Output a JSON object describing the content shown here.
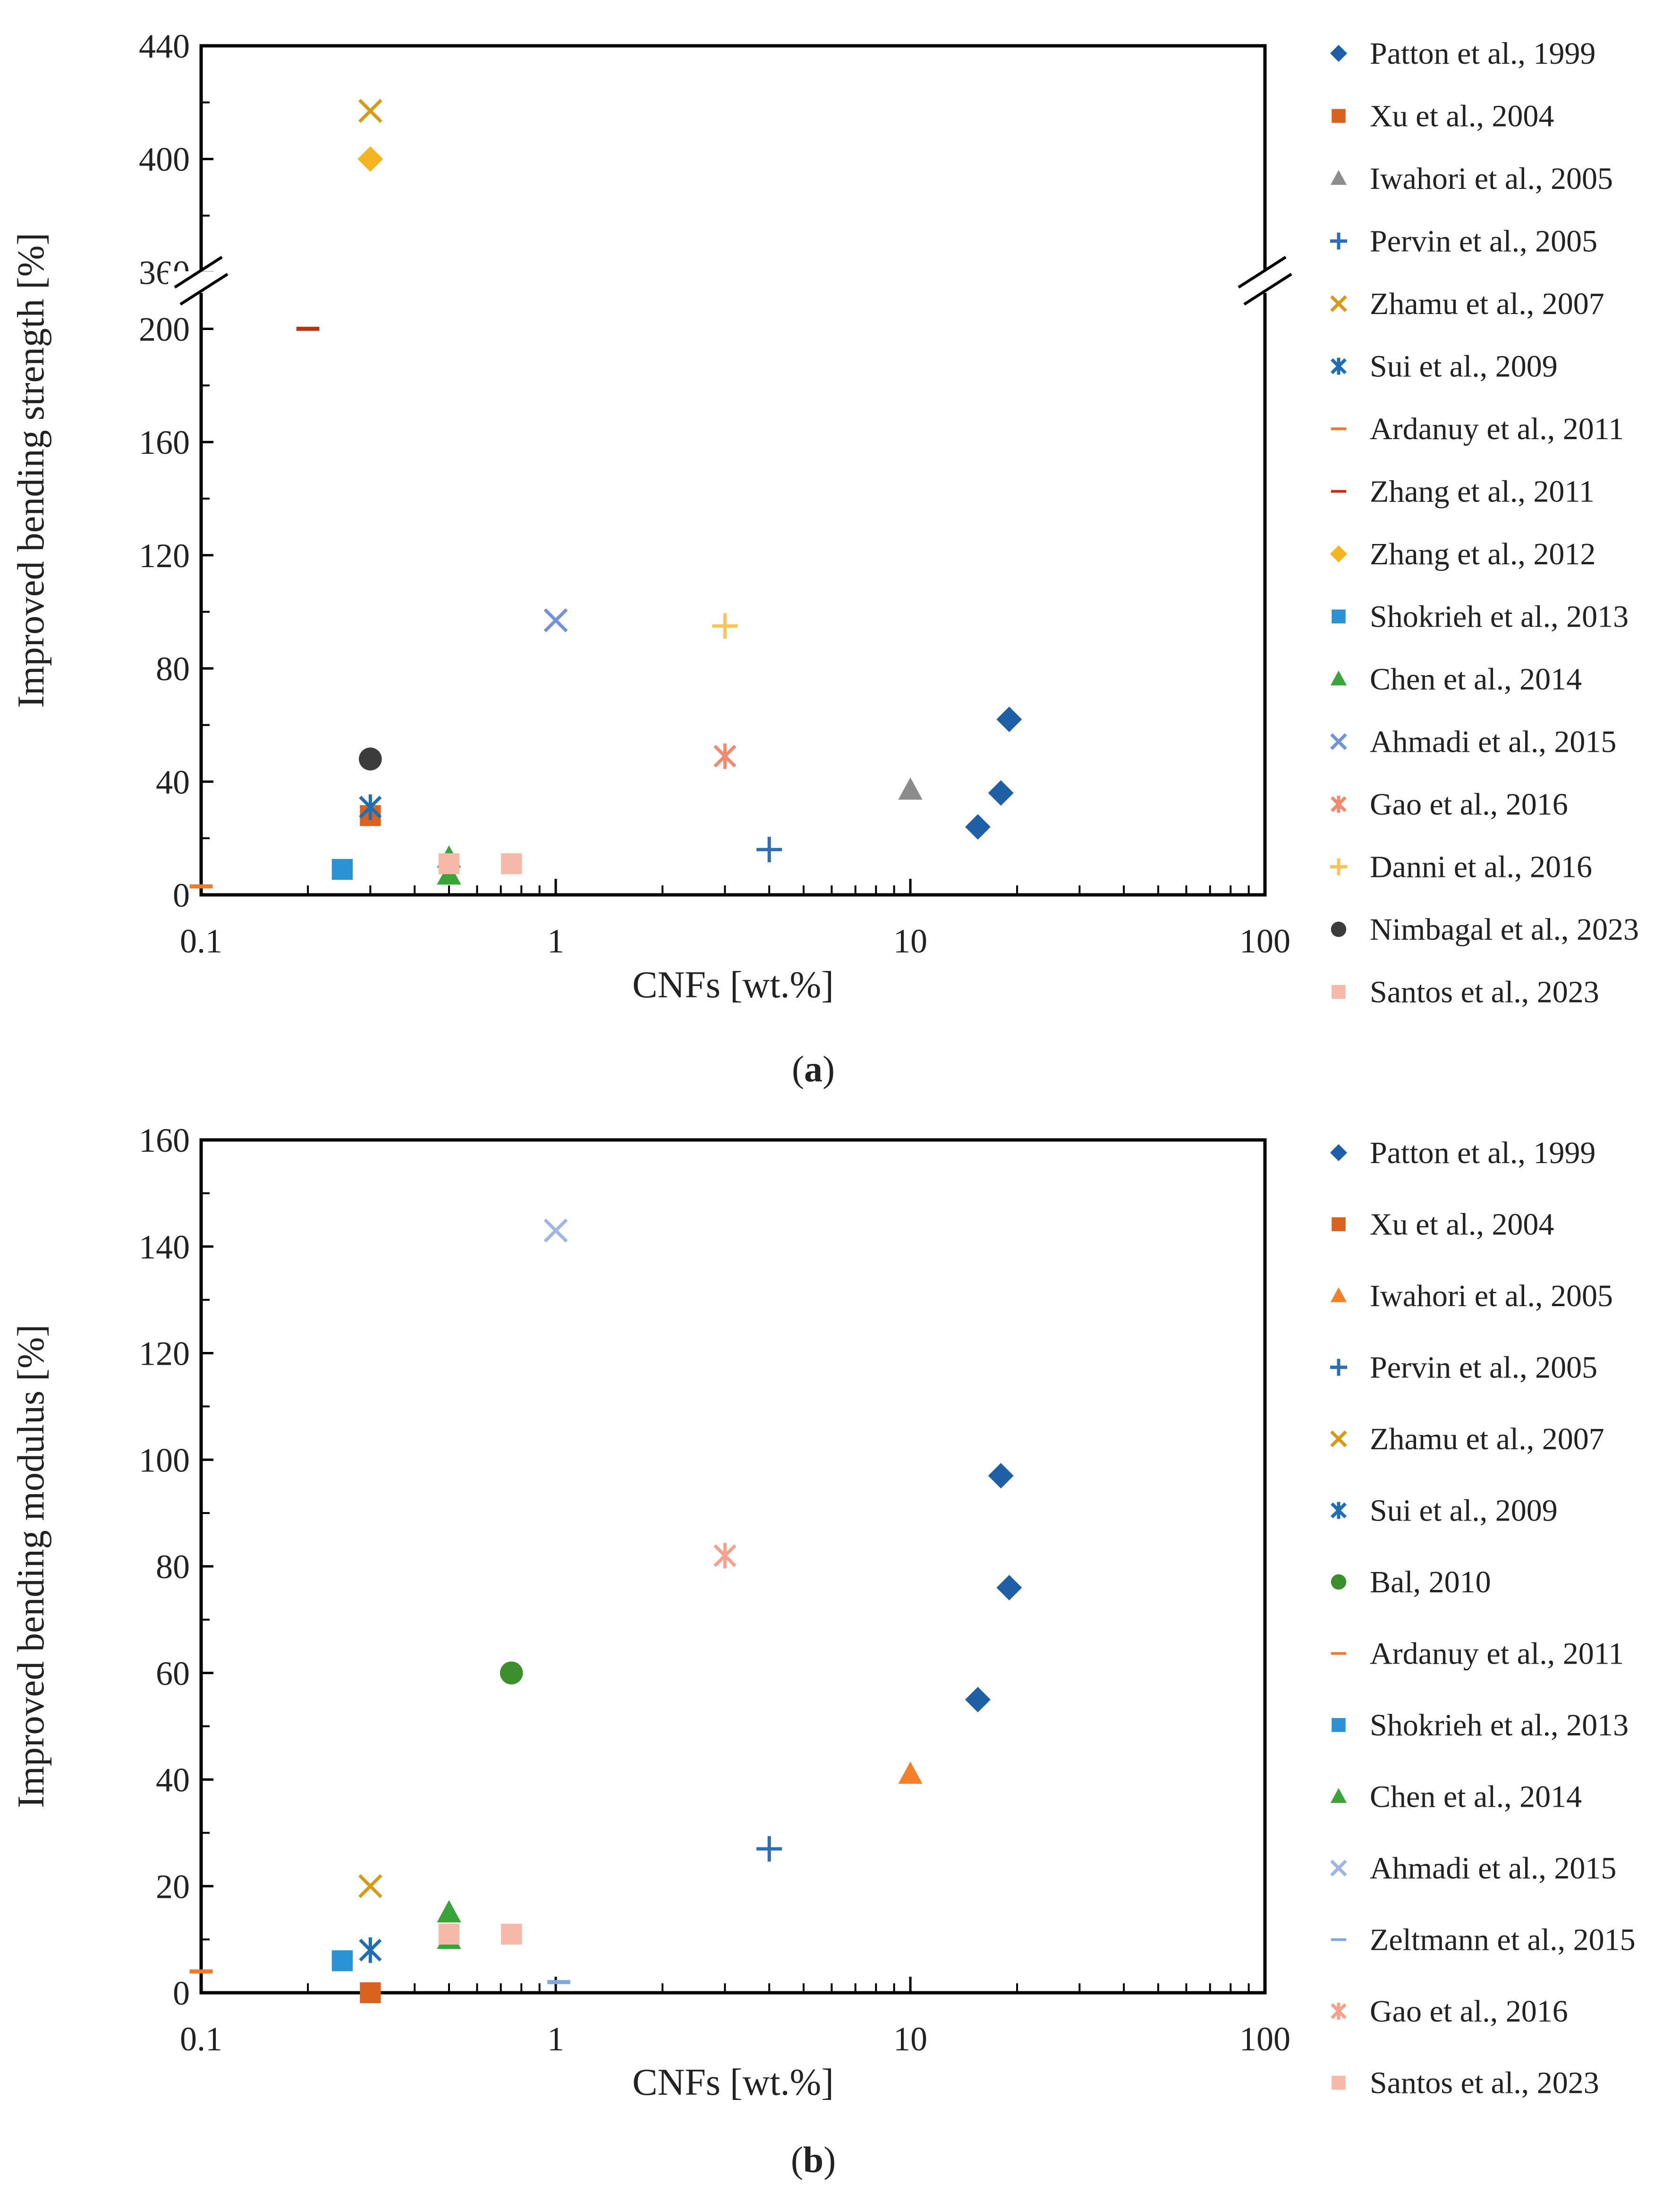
{
  "chart_data": [
    {
      "type": "scatter",
      "panel": "a",
      "caption_letter": "a",
      "xlabel": "CNFs [wt.%]",
      "ylabel": "Improved bending strength [%]",
      "xscale": "log",
      "xlim": [
        0.1,
        100
      ],
      "xticks": [
        {
          "v": 0.1,
          "label": "0.1"
        },
        {
          "v": 1,
          "label": "1"
        },
        {
          "v": 10,
          "label": "10"
        },
        {
          "v": 100,
          "label": "100"
        }
      ],
      "ylim": [
        0,
        440
      ],
      "axis_break": [
        215,
        355
      ],
      "yticks": [
        {
          "v": 0,
          "label": "0"
        },
        {
          "v": 40,
          "label": "40"
        },
        {
          "v": 80,
          "label": "80"
        },
        {
          "v": 120,
          "label": "120"
        },
        {
          "v": 160,
          "label": "160"
        },
        {
          "v": 200,
          "label": "200"
        },
        {
          "v": 360,
          "label": "360"
        },
        {
          "v": 400,
          "label": "400"
        },
        {
          "v": 440,
          "label": "440"
        }
      ],
      "legend_position": "right",
      "series": [
        {
          "name": "Patton et al., 1999",
          "marker": "diamond",
          "color": "#1f5fa6",
          "points": [
            [
              15.5,
              24
            ],
            [
              18,
              36
            ],
            [
              19,
              62
            ]
          ]
        },
        {
          "name": "Xu et al., 2004",
          "marker": "square",
          "color": "#d9621e",
          "points": [
            [
              0.3,
              28
            ]
          ]
        },
        {
          "name": "Iwahori et al., 2005",
          "marker": "triangle",
          "color": "#8c8c8c",
          "points": [
            [
              10,
              37
            ]
          ]
        },
        {
          "name": "Pervin et al., 2005",
          "marker": "plus",
          "color": "#2e6db4",
          "points": [
            [
              4,
              16
            ]
          ]
        },
        {
          "name": "Zhamu et al., 2007",
          "marker": "x",
          "color": "#d79a16",
          "points": [
            [
              0.3,
              417
            ]
          ]
        },
        {
          "name": "Sui et al., 2009",
          "marker": "star",
          "color": "#1f6fb0",
          "points": [
            [
              0.3,
              31
            ]
          ]
        },
        {
          "name": "Ardanuy et al., 2011",
          "marker": "dash",
          "color": "#ee7a30",
          "points": [
            [
              0.1,
              3
            ]
          ]
        },
        {
          "name": "Zhang et al., 2011",
          "marker": "dash",
          "color": "#b83214",
          "points": [
            [
              0.2,
              200
            ]
          ]
        },
        {
          "name": "Zhang et al., 2012",
          "marker": "diamond",
          "color": "#f5b520",
          "points": [
            [
              0.3,
              400
            ]
          ]
        },
        {
          "name": "Shokrieh et al., 2013",
          "marker": "square",
          "color": "#2a93d5",
          "points": [
            [
              0.25,
              9
            ]
          ]
        },
        {
          "name": "Chen et al., 2014",
          "marker": "triangle",
          "color": "#3aa33a",
          "points": [
            [
              0.5,
              7
            ],
            [
              0.5,
              13
            ]
          ]
        },
        {
          "name": "Ahmadi et al., 2015",
          "marker": "x",
          "color": "#7294d4",
          "points": [
            [
              1,
              97
            ]
          ]
        },
        {
          "name": "Gao et al., 2016",
          "marker": "star",
          "color": "#f08a6e",
          "points": [
            [
              3,
              49
            ]
          ]
        },
        {
          "name": "Danni et al., 2016",
          "marker": "plus",
          "color": "#f8c45c",
          "points": [
            [
              3,
              95
            ]
          ]
        },
        {
          "name": "Nimbagal et al., 2023",
          "marker": "circle",
          "color": "#3c3c3c",
          "points": [
            [
              0.3,
              48
            ]
          ]
        },
        {
          "name": "Santos et al., 2023",
          "marker": "square",
          "color": "#f6b8a8",
          "points": [
            [
              0.5,
              11
            ],
            [
              0.75,
              11
            ]
          ]
        }
      ]
    },
    {
      "type": "scatter",
      "panel": "b",
      "caption_letter": "b",
      "xlabel": "CNFs [wt.%]",
      "ylabel": "Improved bending modulus [%]",
      "xscale": "log",
      "xlim": [
        0.1,
        100
      ],
      "xticks": [
        {
          "v": 0.1,
          "label": "0.1"
        },
        {
          "v": 1,
          "label": "1"
        },
        {
          "v": 10,
          "label": "10"
        },
        {
          "v": 100,
          "label": "100"
        }
      ],
      "ylim": [
        0,
        160
      ],
      "yticks": [
        {
          "v": 0,
          "label": "0"
        },
        {
          "v": 20,
          "label": "20"
        },
        {
          "v": 40,
          "label": "40"
        },
        {
          "v": 60,
          "label": "60"
        },
        {
          "v": 80,
          "label": "80"
        },
        {
          "v": 100,
          "label": "100"
        },
        {
          "v": 120,
          "label": "120"
        },
        {
          "v": 140,
          "label": "140"
        },
        {
          "v": 160,
          "label": "160"
        }
      ],
      "legend_position": "right",
      "series": [
        {
          "name": "Patton et al., 1999",
          "marker": "diamond",
          "color": "#1f5fa6",
          "points": [
            [
              15.5,
              55
            ],
            [
              18,
              97
            ],
            [
              19,
              76
            ]
          ]
        },
        {
          "name": "Xu et al., 2004",
          "marker": "square",
          "color": "#d9621e",
          "points": [
            [
              0.3,
              0
            ]
          ]
        },
        {
          "name": "Iwahori et al., 2005",
          "marker": "triangle",
          "color": "#f27f2a",
          "points": [
            [
              10,
              41
            ]
          ]
        },
        {
          "name": "Pervin et al., 2005",
          "marker": "plus",
          "color": "#2e6db4",
          "points": [
            [
              4,
              27
            ]
          ]
        },
        {
          "name": "Zhamu et al., 2007",
          "marker": "x",
          "color": "#d79a16",
          "points": [
            [
              0.3,
              20
            ]
          ]
        },
        {
          "name": "Sui et al., 2009",
          "marker": "star",
          "color": "#1f6fb0",
          "points": [
            [
              0.3,
              8
            ]
          ]
        },
        {
          "name": "Bal, 2010",
          "marker": "circle",
          "color": "#3d8f2e",
          "points": [
            [
              0.75,
              60
            ]
          ]
        },
        {
          "name": "Ardanuy et al., 2011",
          "marker": "dash",
          "color": "#ee7a30",
          "points": [
            [
              0.1,
              4
            ]
          ]
        },
        {
          "name": "Shokrieh et al., 2013",
          "marker": "square",
          "color": "#2a93d5",
          "points": [
            [
              0.25,
              6
            ]
          ]
        },
        {
          "name": "Chen et al., 2014",
          "marker": "triangle",
          "color": "#3aa33a",
          "points": [
            [
              0.5,
              10
            ],
            [
              0.5,
              15
            ]
          ]
        },
        {
          "name": "Ahmadi et al., 2015",
          "marker": "x",
          "color": "#9fb6e0",
          "points": [
            [
              1,
              143
            ]
          ]
        },
        {
          "name": "Zeltmann et al., 2015",
          "marker": "dash",
          "color": "#7fa9dc",
          "points": [
            [
              1.02,
              2
            ]
          ]
        },
        {
          "name": "Gao et al., 2016",
          "marker": "star",
          "color": "#f4a28e",
          "points": [
            [
              3,
              82
            ]
          ]
        },
        {
          "name": "Santos et al., 2023",
          "marker": "square",
          "color": "#f6b8a8",
          "points": [
            [
              0.5,
              11
            ],
            [
              0.75,
              11
            ]
          ]
        }
      ]
    }
  ]
}
